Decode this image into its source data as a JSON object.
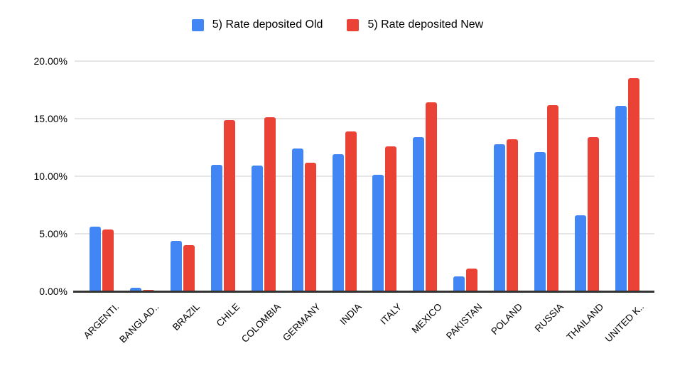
{
  "chart_data": {
    "type": "bar",
    "title": "",
    "categories": [
      "ARGENTI.",
      "BANGLAD..",
      "BRAZIL",
      "CHILE",
      "COLOMBIA",
      "GERMANY",
      "INDIA",
      "ITALY",
      "MEXICO",
      "PAKISTAN",
      "POLAND",
      "RUSSIA",
      "THAILAND",
      "UNITED K.."
    ],
    "series": [
      {
        "name": "5) Rate deposited Old",
        "color": "#4285F4",
        "values": [
          5.6,
          0.3,
          4.4,
          11.0,
          10.9,
          12.4,
          11.9,
          10.1,
          13.4,
          1.3,
          12.8,
          12.1,
          6.6,
          16.1
        ]
      },
      {
        "name": "5) Rate deposited New",
        "color": "#EA4335",
        "values": [
          5.4,
          0.1,
          4.0,
          14.9,
          15.1,
          11.2,
          13.9,
          12.6,
          16.4,
          2.0,
          13.2,
          16.2,
          13.4,
          18.5
        ]
      }
    ],
    "ylabel": "",
    "xlabel": "",
    "ylim": [
      0,
      20
    ],
    "ytick_values": [
      0,
      5,
      10,
      15,
      20
    ],
    "ytick_labels": [
      "0.00%",
      "5.00%",
      "10.00%",
      "15.00%",
      "20.00%"
    ],
    "grid": true,
    "legend_position": "top-center"
  },
  "colors": {
    "background": "#ffffff",
    "gridline": "#e6e6e6",
    "axis_line": "#333333",
    "label_text": "#000000",
    "series_old": "#4285F4",
    "series_new": "#EA4335"
  }
}
